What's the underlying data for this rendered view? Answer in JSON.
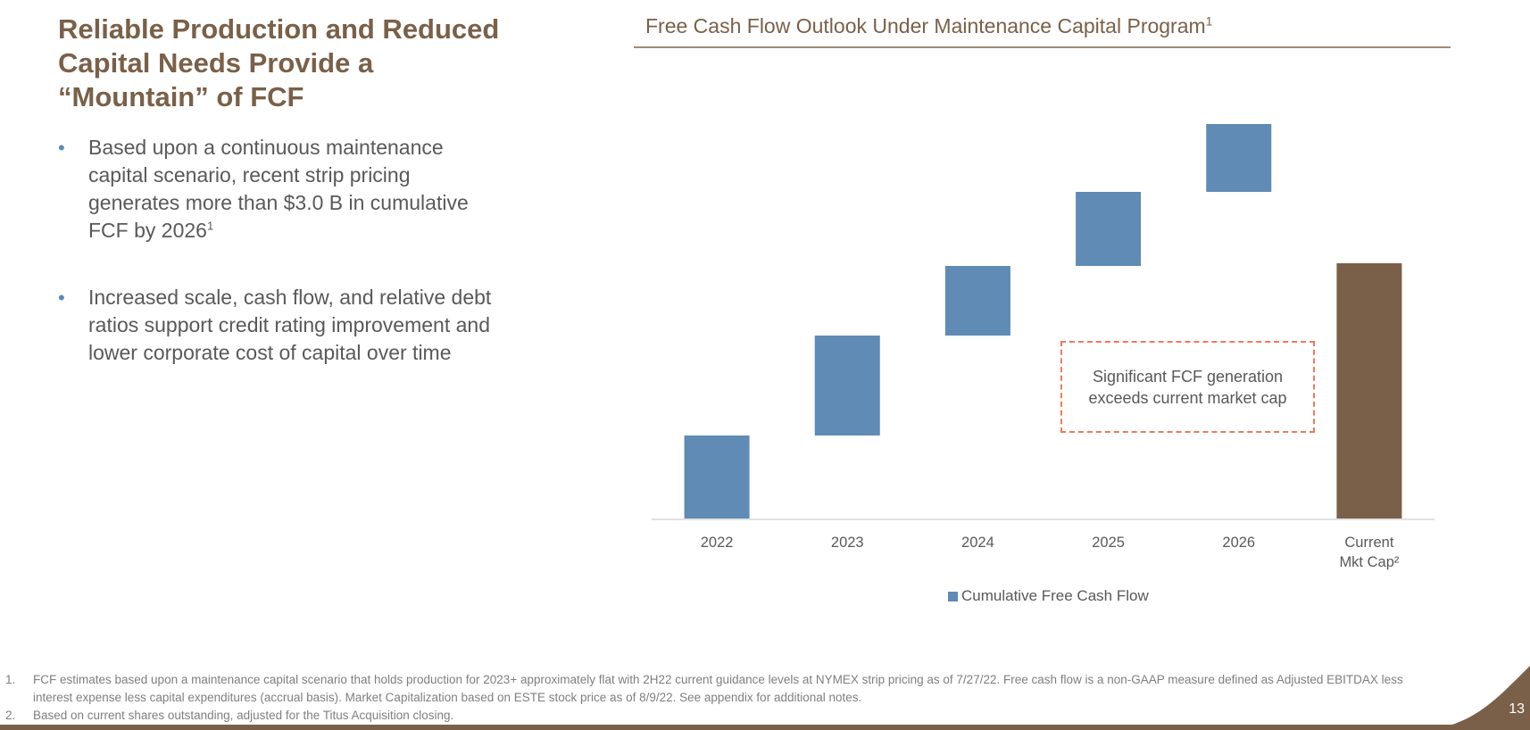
{
  "slide": {
    "title": "Reliable Production and Reduced Capital Needs Provide a “Mountain” of FCF",
    "page_number": "13"
  },
  "bullets": [
    {
      "text": "Based upon a continuous maintenance capital scenario, recent strip pricing generates more than $3.0 B in cumulative FCF by 2026",
      "sup": "1"
    },
    {
      "text": "Increased scale, cash flow, and relative debt ratios support credit rating improvement and lower corporate cost of capital over time",
      "sup": ""
    }
  ],
  "chart_data": {
    "type": "bar",
    "subtype": "waterfall",
    "title": "Free Cash Flow Outlook Under Maintenance Capital Program",
    "title_sup": "1",
    "categories": [
      "2022",
      "2023",
      "2024",
      "2025",
      "2026",
      "Current Mkt Cap²"
    ],
    "category_lines": [
      [
        "2022"
      ],
      [
        "2023"
      ],
      [
        "2024"
      ],
      [
        "2025"
      ],
      [
        "2026"
      ],
      [
        "Current",
        "Mkt Cap²"
      ]
    ],
    "series": [
      {
        "name": "Cumulative Free Cash Flow",
        "color": "#5f8bb5",
        "segments": [
          [
            0,
            0.93
          ],
          [
            0.93,
            2.05
          ],
          [
            2.05,
            2.83
          ],
          [
            2.83,
            3.66
          ],
          [
            3.66,
            4.42
          ]
        ]
      }
    ],
    "market_cap": {
      "value": 2.86,
      "color": "#7a6048"
    },
    "y_axis": "not shown",
    "ylim": [
      0,
      5.0
    ],
    "grid": false,
    "legend": "bottom-center",
    "annotation": "Significant FCF generation exceeds current market cap"
  },
  "footnotes": [
    {
      "num": "1.",
      "text": "FCF estimates based upon a maintenance capital scenario that holds production for 2023+ approximately flat with 2H22 current guidance levels at NYMEX strip pricing as of 7/27/22. Free cash flow is a non-GAAP measure defined as Adjusted EBITDAX less interest expense less capital expenditures (accrual basis). Market Capitalization based on ESTE stock price as of 8/9/22. See appendix for additional notes."
    },
    {
      "num": "2.",
      "text": "Based on current shares outstanding, adjusted for the Titus Acquisition closing."
    }
  ],
  "colors": {
    "brand_brown": "#7a6048",
    "bar_blue": "#5f8bb5",
    "annotation_border": "#f0795c"
  }
}
